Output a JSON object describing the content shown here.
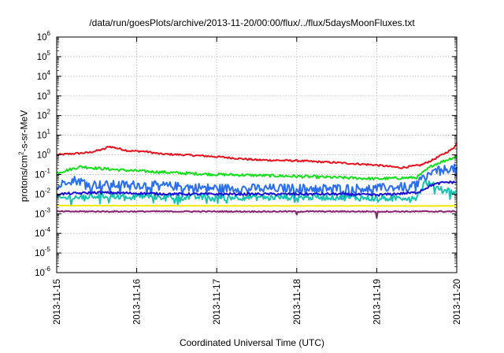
{
  "chart_data": {
    "type": "line",
    "title": "/data/run/goesPlots/archive/2013-11-20/00:00/flux/../flux/5daysMoonFluxes.txt",
    "xlabel": "Coordinated Universal Time (UTC)",
    "ylabel_main": "protons/cm",
    "ylabel_sup": "2",
    "ylabel_rest": "-s-sr-MeV",
    "y_scale": "log",
    "ylim": [
      1e-06,
      1000000.0
    ],
    "y_ticks": [
      {
        "base": "10",
        "exp": "-6",
        "value": 1e-06
      },
      {
        "base": "10",
        "exp": "-5",
        "value": 1e-05
      },
      {
        "base": "10",
        "exp": "-4",
        "value": 0.0001
      },
      {
        "base": "10",
        "exp": "-3",
        "value": 0.001
      },
      {
        "base": "10",
        "exp": "-2",
        "value": 0.01
      },
      {
        "base": "10",
        "exp": "-1",
        "value": 0.1
      },
      {
        "base": "10",
        "exp": "0",
        "value": 1
      },
      {
        "base": "10",
        "exp": "1",
        "value": 10
      },
      {
        "base": "10",
        "exp": "2",
        "value": 100
      },
      {
        "base": "10",
        "exp": "3",
        "value": 1000
      },
      {
        "base": "10",
        "exp": "4",
        "value": 10000
      },
      {
        "base": "10",
        "exp": "5",
        "value": 100000
      },
      {
        "base": "10",
        "exp": "6",
        "value": 1000000
      }
    ],
    "xlim": [
      0,
      5
    ],
    "x_ticks": [
      {
        "label": "2013-11-15",
        "value": 0
      },
      {
        "label": "2013-11-16",
        "value": 1
      },
      {
        "label": "2013-11-17",
        "value": 2
      },
      {
        "label": "2013-11-18",
        "value": 3
      },
      {
        "label": "2013-11-19",
        "value": 4
      },
      {
        "label": "2013-11-20",
        "value": 5
      }
    ],
    "grid": true,
    "series": [
      {
        "color": "#e8121e",
        "width": 2,
        "noise": 0.045,
        "spikes": [],
        "anchors": [
          [
            0,
            1.0
          ],
          [
            0.4,
            1.3
          ],
          [
            0.6,
            2.0
          ],
          [
            0.65,
            2.7
          ],
          [
            0.9,
            1.6
          ],
          [
            1.1,
            1.5
          ],
          [
            1.3,
            1.1
          ],
          [
            1.6,
            1.0
          ],
          [
            2.0,
            0.8
          ],
          [
            2.5,
            0.55
          ],
          [
            3.0,
            0.5
          ],
          [
            3.5,
            0.4
          ],
          [
            4.0,
            0.3
          ],
          [
            4.3,
            0.22
          ],
          [
            4.55,
            0.3
          ],
          [
            4.7,
            0.55
          ],
          [
            4.85,
            1.2
          ],
          [
            4.95,
            2.0
          ],
          [
            5.0,
            4.0
          ]
        ]
      },
      {
        "color": "#14e01a",
        "width": 2,
        "noise": 0.07,
        "spikes": [],
        "anchors": [
          [
            0,
            0.12
          ],
          [
            0.3,
            0.25
          ],
          [
            0.55,
            0.2
          ],
          [
            0.9,
            0.16
          ],
          [
            1.5,
            0.12
          ],
          [
            2.0,
            0.1
          ],
          [
            2.5,
            0.09
          ],
          [
            3.0,
            0.08
          ],
          [
            3.5,
            0.07
          ],
          [
            4.0,
            0.06
          ],
          [
            4.5,
            0.07
          ],
          [
            4.7,
            0.3
          ],
          [
            4.85,
            0.5
          ],
          [
            5.0,
            0.85
          ]
        ]
      },
      {
        "color": "#2a6ef5",
        "width": 2,
        "noise": 0.22,
        "spikes": [],
        "anchors": [
          [
            0,
            0.02
          ],
          [
            0.15,
            0.06
          ],
          [
            0.5,
            0.03
          ],
          [
            1.0,
            0.03
          ],
          [
            1.5,
            0.025
          ],
          [
            2.0,
            0.02
          ],
          [
            2.5,
            0.02
          ],
          [
            3.0,
            0.02
          ],
          [
            3.5,
            0.02
          ],
          [
            4.0,
            0.02
          ],
          [
            4.45,
            0.025
          ],
          [
            4.6,
            0.08
          ],
          [
            4.75,
            0.15
          ],
          [
            4.9,
            0.2
          ],
          [
            5.0,
            0.2
          ]
        ]
      },
      {
        "color": "#15c4b0",
        "width": 2,
        "noise": 0.16,
        "spikes": [],
        "anchors": [
          [
            0,
            0.006
          ],
          [
            0.5,
            0.008
          ],
          [
            1.0,
            0.008
          ],
          [
            1.5,
            0.007
          ],
          [
            2.0,
            0.007
          ],
          [
            2.5,
            0.007
          ],
          [
            3.0,
            0.007
          ],
          [
            3.5,
            0.007
          ],
          [
            4.0,
            0.006
          ],
          [
            4.5,
            0.007
          ],
          [
            4.6,
            0.04
          ],
          [
            4.8,
            0.02
          ],
          [
            5.0,
            0.011
          ]
        ]
      },
      {
        "color": "#1a10d8",
        "width": 2,
        "noise": 0.06,
        "spikes": [],
        "anchors": [
          [
            0,
            0.01
          ],
          [
            0.5,
            0.012
          ],
          [
            1.0,
            0.011
          ],
          [
            1.5,
            0.01
          ],
          [
            2.0,
            0.01
          ],
          [
            2.5,
            0.01
          ],
          [
            3.0,
            0.01
          ],
          [
            3.5,
            0.01
          ],
          [
            4.0,
            0.009
          ],
          [
            4.5,
            0.012
          ],
          [
            4.7,
            0.03
          ],
          [
            4.85,
            0.04
          ],
          [
            5.0,
            0.04
          ]
        ]
      },
      {
        "color": "#f0e806",
        "width": 2,
        "noise": 0.01,
        "spikes": [],
        "anchors": [
          [
            0,
            0.0026
          ],
          [
            2.5,
            0.0025
          ],
          [
            5.0,
            0.0025
          ]
        ]
      },
      {
        "color": "#8a2270",
        "width": 2,
        "noise": 0.03,
        "spikes": [
          [
            4.0,
            0.0006
          ],
          [
            3.0,
            0.0009
          ]
        ],
        "anchors": [
          [
            0,
            0.0013
          ],
          [
            2.5,
            0.0013
          ],
          [
            5.0,
            0.0013
          ]
        ]
      }
    ]
  }
}
